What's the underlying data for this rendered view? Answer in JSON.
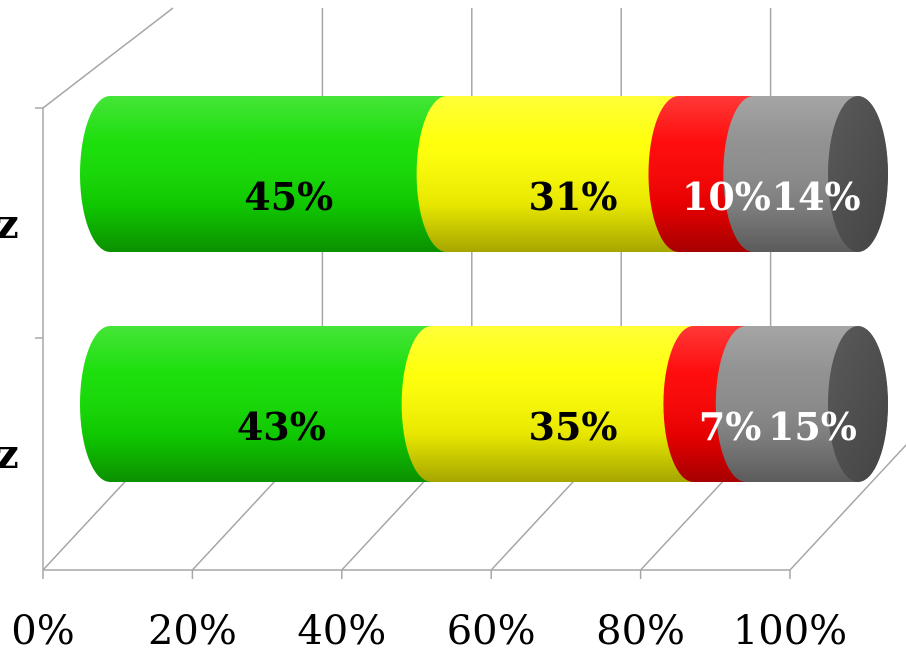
{
  "chart_data": {
    "type": "bar",
    "orientation": "horizontal",
    "stacked": "percent",
    "style": "3d-cylinder",
    "title": "",
    "xlabel": "",
    "ylabel": "",
    "xlim": [
      0,
      100
    ],
    "x_ticks": [
      "0%",
      "20%",
      "40%",
      "60%",
      "80%",
      "100%"
    ],
    "grid": true,
    "legend": "none",
    "categories": [
      "z",
      "z"
    ],
    "series": [
      {
        "color": "#11dd00",
        "label_color": "#000000",
        "values": [
          45,
          43
        ],
        "labels": [
          "45%",
          "43%"
        ]
      },
      {
        "color": "#ffff00",
        "label_color": "#000000",
        "values": [
          31,
          35
        ],
        "labels": [
          "31%",
          "35%"
        ]
      },
      {
        "color": "#ff0000",
        "label_color": "#ffffff",
        "values": [
          10,
          7
        ],
        "labels": [
          "10%",
          "7%"
        ]
      },
      {
        "color": "#8c8c8c",
        "label_color": "#ffffff",
        "values": [
          14,
          15
        ],
        "labels": [
          "14%",
          "15%"
        ]
      }
    ]
  }
}
